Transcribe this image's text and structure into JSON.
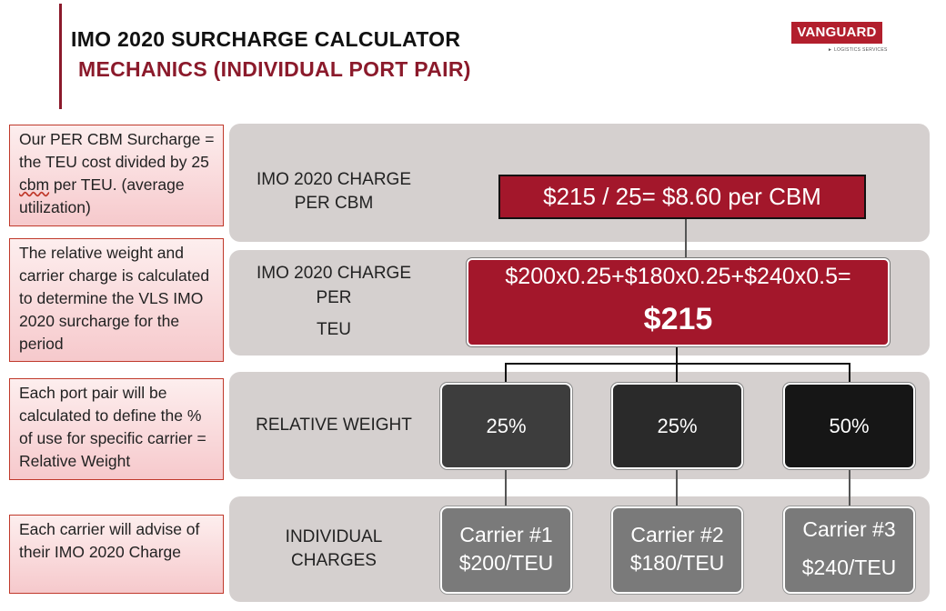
{
  "header": {
    "title": "IMO 2020 SURCHARGE CALCULATOR",
    "subtitle": "MECHANICS (INDIVIDUAL PORT PAIR)",
    "logo_name": "VANGUARD",
    "logo_tagline": "► LOGISTICS SERVICES",
    "accent_color": "#8b1a2b"
  },
  "notes": [
    {
      "text_a": "Our PER CBM Surcharge = the TEU cost divided by 25 ",
      "text_u": "cbm",
      "text_b": " per TEU. (average utilization)"
    },
    {
      "text": "The relative weight and carrier charge is calculated to determine the VLS IMO 2020 surcharge for the period"
    },
    {
      "text": "Each port pair will be calculated to define the % of use for specific carrier = Relative Weight"
    },
    {
      "text": "Each carrier will advise of their IMO 2020 Charge"
    }
  ],
  "rows": {
    "cbm": {
      "label_1": "IMO 2020 CHARGE",
      "label_2": "PER CBM",
      "formula": "$215 / 25= $8.60 per CBM"
    },
    "teu": {
      "label_1": "IMO 2020 CHARGE",
      "label_2": "PER",
      "label_3": "TEU",
      "formula": "$200x0.25+$180x0.25+$240x0.5=",
      "total": "$215"
    },
    "weight": {
      "label": "RELATIVE WEIGHT",
      "values": [
        "25%",
        "25%",
        "50%"
      ]
    },
    "charges": {
      "label_1": "INDIVIDUAL",
      "label_2": "CHARGES",
      "carriers": [
        {
          "name": "Carrier #1",
          "rate": "$200/TEU"
        },
        {
          "name": "Carrier #2",
          "rate": "$180/TEU"
        },
        {
          "name": "Carrier #3",
          "rate": "$240/TEU"
        }
      ]
    }
  },
  "colors": {
    "red_box": "#a3172b",
    "panel": "#d5d0cf",
    "weight_boxes": [
      "#3d3d3d",
      "#2a2a2a",
      "#161616"
    ],
    "carrier_box": "#7a7a7a"
  }
}
